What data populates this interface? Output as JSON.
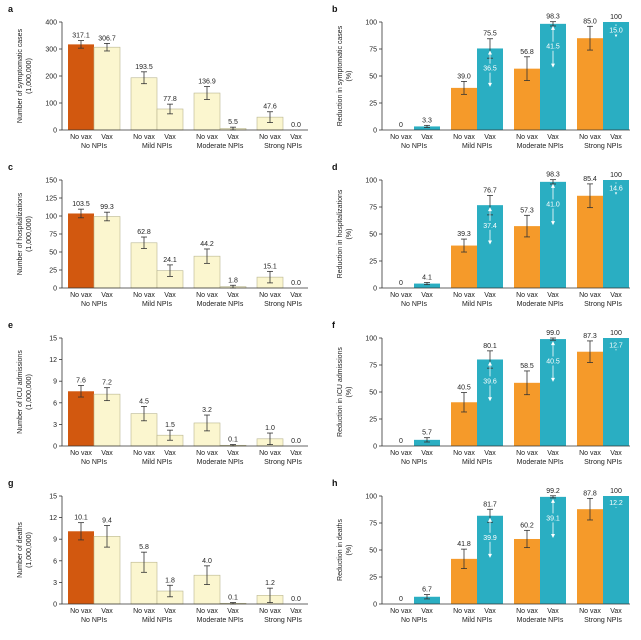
{
  "colors": {
    "novax_nonpi": "#d2580f",
    "vax_nonpi": "#fbf6cf",
    "novax_npi": "#fbf6cf",
    "vax_npi": "#fbf6cf",
    "reduction_novax": "#f59a2a",
    "reduction_vax": "#2aaec2",
    "bar_outline": "#b9b690"
  },
  "chart_data": [
    {
      "panel": "a",
      "type": "bar",
      "ylabel": "Number of symptomatic cases\n(1,000,000)",
      "ylim": [
        0,
        400
      ],
      "yticks": [
        0,
        100,
        200,
        300,
        400
      ],
      "groups": [
        "No NPIs",
        "Mild NPIs",
        "Moderate NPIs",
        "Strong NPIs"
      ],
      "bar_labels": [
        "No vax",
        "Vax"
      ],
      "values": [
        [
          317.1,
          306.7
        ],
        [
          193.5,
          77.8
        ],
        [
          136.9,
          5.5
        ],
        [
          47.6,
          0.0
        ]
      ],
      "value_labels": [
        [
          "317.1",
          "306.7"
        ],
        [
          "193.5",
          "77.8"
        ],
        [
          "136.9",
          "5.5"
        ],
        [
          "47.6",
          "0.0"
        ]
      ],
      "errors": [
        [
          14,
          14
        ],
        [
          22,
          18
        ],
        [
          24,
          5
        ],
        [
          20,
          0
        ]
      ]
    },
    {
      "panel": "b",
      "type": "bar",
      "ylabel": "Reduction in symptomatic cases\n(%)",
      "ylim": [
        0,
        100
      ],
      "yticks": [
        0,
        25,
        50,
        75,
        100
      ],
      "groups": [
        "No NPIs",
        "Mild NPIs",
        "Moderate NPIs",
        "Strong NPIs"
      ],
      "bar_labels": [
        "No vax",
        "Vax"
      ],
      "values": [
        [
          0,
          3.3
        ],
        [
          39.0,
          75.5
        ],
        [
          56.8,
          98.3
        ],
        [
          85.0,
          100
        ]
      ],
      "value_labels": [
        [
          "0",
          "3.3"
        ],
        [
          "39.0",
          "75.5"
        ],
        [
          "56.8",
          "98.3"
        ],
        [
          "85.0",
          "100"
        ]
      ],
      "errors": [
        [
          0,
          1
        ],
        [
          6,
          9
        ],
        [
          11,
          2
        ],
        [
          11,
          0
        ]
      ],
      "inner_labels": [
        "",
        "36.5",
        "41.5",
        "15.0"
      ]
    },
    {
      "panel": "c",
      "type": "bar",
      "ylabel": "Number of hospitalizations\n(1,000,000)",
      "ylim": [
        0,
        150
      ],
      "yticks": [
        0,
        25,
        50,
        75,
        100,
        125,
        150
      ],
      "groups": [
        "No NPIs",
        "Mild NPIs",
        "Moderate NPIs",
        "Strong NPIs"
      ],
      "bar_labels": [
        "No vax",
        "Vax"
      ],
      "values": [
        [
          103.5,
          99.3
        ],
        [
          62.8,
          24.1
        ],
        [
          44.2,
          1.8
        ],
        [
          15.1,
          0.0
        ]
      ],
      "value_labels": [
        [
          "103.5",
          "99.3"
        ],
        [
          "62.8",
          "24.1"
        ],
        [
          "44.2",
          "1.8"
        ],
        [
          "15.1",
          "0.0"
        ]
      ],
      "errors": [
        [
          6,
          6
        ],
        [
          8,
          8
        ],
        [
          10,
          2
        ],
        [
          8,
          0
        ]
      ]
    },
    {
      "panel": "d",
      "type": "bar",
      "ylabel": "Reduction in hospitalizations\n(%)",
      "ylim": [
        0,
        100
      ],
      "yticks": [
        0,
        25,
        50,
        75,
        100
      ],
      "groups": [
        "No NPIs",
        "Mild NPIs",
        "Moderate NPIs",
        "Strong NPIs"
      ],
      "bar_labels": [
        "No vax",
        "Vax"
      ],
      "values": [
        [
          0,
          4.1
        ],
        [
          39.3,
          76.7
        ],
        [
          57.3,
          98.3
        ],
        [
          85.4,
          100
        ]
      ],
      "value_labels": [
        [
          "0",
          "4.1"
        ],
        [
          "39.3",
          "76.7"
        ],
        [
          "57.3",
          "98.3"
        ],
        [
          "85.4",
          "100"
        ]
      ],
      "errors": [
        [
          0,
          1
        ],
        [
          6,
          9
        ],
        [
          10,
          2
        ],
        [
          11,
          0
        ]
      ],
      "inner_labels": [
        "",
        "37.4",
        "41.0",
        "14.6"
      ]
    },
    {
      "panel": "e",
      "type": "bar",
      "ylabel": "Number of ICU admissions\n(1,000,000)",
      "ylim": [
        0,
        15
      ],
      "yticks": [
        0,
        3,
        6,
        9,
        12,
        15
      ],
      "groups": [
        "No NPIs",
        "Mild NPIs",
        "Moderate NPIs",
        "Strong NPIs"
      ],
      "bar_labels": [
        "No vax",
        "Vax"
      ],
      "values": [
        [
          7.6,
          7.2
        ],
        [
          4.5,
          1.5
        ],
        [
          3.2,
          0.1
        ],
        [
          1.0,
          0.0
        ]
      ],
      "value_labels": [
        [
          "7.6",
          "7.2"
        ],
        [
          "4.5",
          "1.5"
        ],
        [
          "3.2",
          "0.1"
        ],
        [
          "1.0",
          "0.0"
        ]
      ],
      "errors": [
        [
          0.8,
          0.9
        ],
        [
          1.0,
          0.7
        ],
        [
          1.1,
          0.1
        ],
        [
          0.8,
          0
        ]
      ]
    },
    {
      "panel": "f",
      "type": "bar",
      "ylabel": "Reduction in ICU admissions\n(%)",
      "ylim": [
        0,
        100
      ],
      "yticks": [
        0,
        25,
        50,
        75,
        100
      ],
      "groups": [
        "No NPIs",
        "Mild NPIs",
        "Moderate NPIs",
        "Strong NPIs"
      ],
      "bar_labels": [
        "No vax",
        "Vax"
      ],
      "values": [
        [
          0,
          5.7
        ],
        [
          40.5,
          80.1
        ],
        [
          58.5,
          99.0
        ],
        [
          87.3,
          100
        ]
      ],
      "value_labels": [
        [
          "0",
          "5.7"
        ],
        [
          "40.5",
          "80.1"
        ],
        [
          "58.5",
          "99.0"
        ],
        [
          "87.3",
          "100"
        ]
      ],
      "errors": [
        [
          0,
          2
        ],
        [
          9,
          8
        ],
        [
          11,
          1
        ],
        [
          10,
          0
        ]
      ],
      "inner_labels": [
        "",
        "39.6",
        "40.5",
        "12.7"
      ]
    },
    {
      "panel": "g",
      "type": "bar",
      "ylabel": "Number of deaths\n(1,000,000)",
      "ylim": [
        0,
        15
      ],
      "yticks": [
        0,
        3,
        6,
        9,
        12,
        15
      ],
      "groups": [
        "No NPIs",
        "Mild NPIs",
        "Moderate NPIs",
        "Strong NPIs"
      ],
      "bar_labels": [
        "No vax",
        "Vax"
      ],
      "values": [
        [
          10.1,
          9.4
        ],
        [
          5.8,
          1.8
        ],
        [
          4.0,
          0.1
        ],
        [
          1.2,
          0.0
        ]
      ],
      "value_labels": [
        [
          "10.1",
          "9.4"
        ],
        [
          "5.8",
          "1.8"
        ],
        [
          "4.0",
          "0.1"
        ],
        [
          "1.2",
          "0.0"
        ]
      ],
      "errors": [
        [
          1.2,
          1.5
        ],
        [
          1.4,
          0.8
        ],
        [
          1.3,
          0.1
        ],
        [
          1.0,
          0
        ]
      ]
    },
    {
      "panel": "h",
      "type": "bar",
      "ylabel": "Reduction in deaths\n(%)",
      "ylim": [
        0,
        100
      ],
      "yticks": [
        0,
        25,
        50,
        75,
        100
      ],
      "groups": [
        "No NPIs",
        "Mild NPIs",
        "Moderate NPIs",
        "Strong NPIs"
      ],
      "bar_labels": [
        "No vax",
        "Vax"
      ],
      "values": [
        [
          0,
          6.7
        ],
        [
          41.8,
          81.7
        ],
        [
          60.2,
          99.2
        ],
        [
          87.8,
          100
        ]
      ],
      "value_labels": [
        [
          "0",
          "6.7"
        ],
        [
          "41.8",
          "81.7"
        ],
        [
          "60.2",
          "99.2"
        ],
        [
          "87.8",
          "100"
        ]
      ],
      "errors": [
        [
          0,
          2
        ],
        [
          9,
          6
        ],
        [
          8,
          1
        ],
        [
          10,
          0
        ]
      ],
      "inner_labels": [
        "",
        "39.9",
        "39.1",
        "12.2"
      ]
    }
  ]
}
